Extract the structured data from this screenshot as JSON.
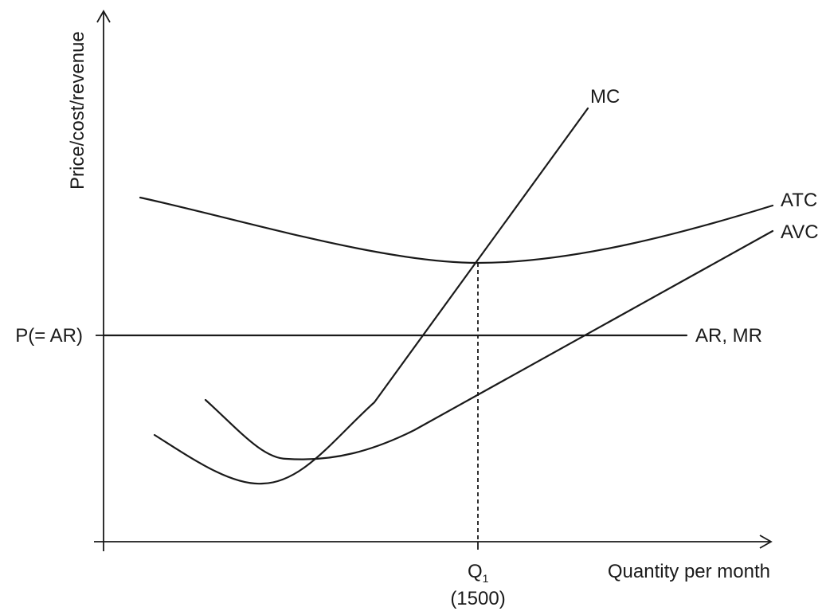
{
  "diagram": {
    "y_axis_label": "Price/cost/revenue",
    "x_axis_label": "Quantity per month",
    "price_label": "P(= AR)",
    "quantity_label_main": "Q",
    "quantity_label_sub": "1",
    "quantity_value": "(1500)",
    "curves": {
      "mc": "MC",
      "atc": "ATC",
      "avc": "AVC",
      "ar_mr": "AR, MR"
    },
    "line_color": "#1a1a1a",
    "background": "#ffffff"
  }
}
